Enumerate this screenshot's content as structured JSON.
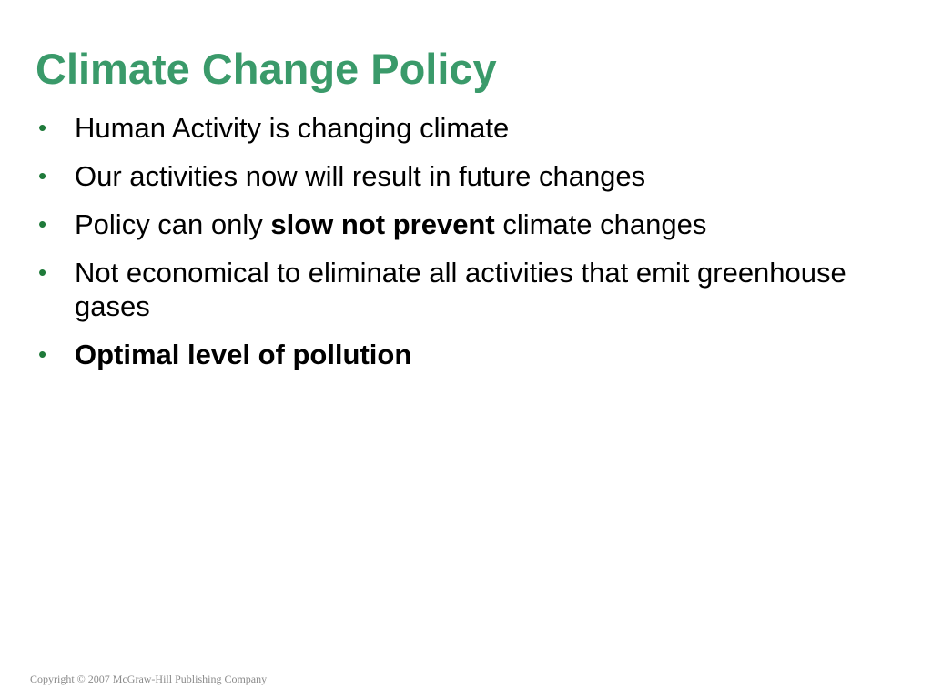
{
  "slide": {
    "title": "Climate Change Policy",
    "title_color": "#3a9a6a",
    "bullet_color": "#1f7a3a",
    "bullet_glyph": "•",
    "bullets": [
      {
        "text": "Human Activity is changing climate"
      },
      {
        "text": "Our activities now will result in future changes"
      },
      {
        "text_before": "Policy can only ",
        "text_bold": "slow not prevent",
        "text_after": " climate changes"
      },
      {
        "text": "Not economical to eliminate all activities that emit greenhouse gases"
      },
      {
        "text_bold": "Optimal level of pollution"
      }
    ],
    "footer": "Copyright © 2007 McGraw-Hill Publishing Company"
  }
}
